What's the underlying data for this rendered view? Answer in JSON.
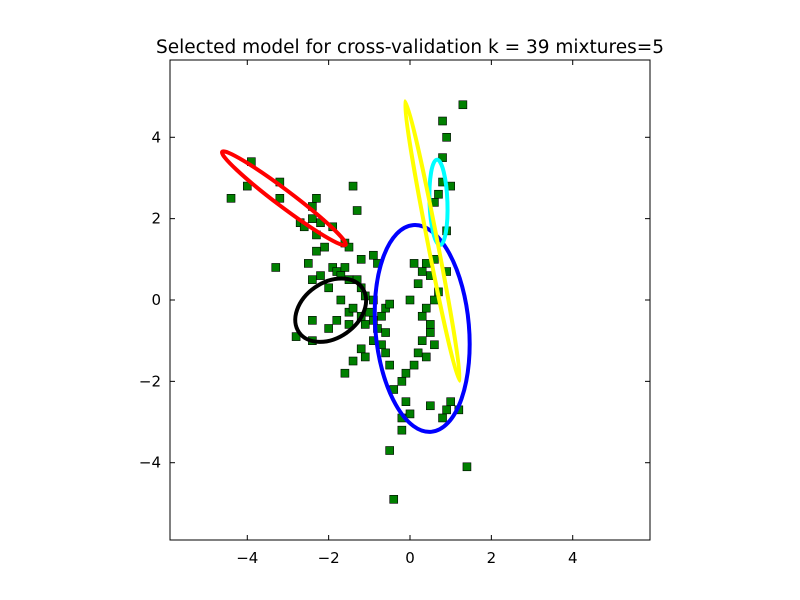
{
  "chart_data": {
    "type": "scatter",
    "title": "Selected model for cross-validation k = 39 mixtures=5",
    "xlabel": "",
    "ylabel": "",
    "xlim": [
      -5.9,
      5.9
    ],
    "ylim": [
      -5.9,
      5.9
    ],
    "xticks": [
      -4,
      -2,
      0,
      2,
      4
    ],
    "yticks": [
      -4,
      -2,
      0,
      2,
      4
    ],
    "xtick_labels": [
      "−4",
      "−2",
      "0",
      "2",
      "4"
    ],
    "ytick_labels": [
      "−4",
      "−2",
      "0",
      "2",
      "4"
    ],
    "grid": false,
    "legend": "none",
    "marker": "square",
    "point_color": "#008000",
    "points": [
      [
        -4.4,
        2.5
      ],
      [
        -4.0,
        2.8
      ],
      [
        -3.9,
        3.4
      ],
      [
        -3.2,
        2.9
      ],
      [
        -3.2,
        2.5
      ],
      [
        -3.3,
        0.8
      ],
      [
        -2.7,
        1.9
      ],
      [
        -2.6,
        1.8
      ],
      [
        -2.5,
        0.9
      ],
      [
        -2.4,
        2.3
      ],
      [
        -2.4,
        2.0
      ],
      [
        -2.3,
        2.5
      ],
      [
        -2.3,
        1.6
      ],
      [
        -2.3,
        1.2
      ],
      [
        -2.2,
        1.9
      ],
      [
        -2.1,
        1.3
      ],
      [
        -1.9,
        1.8
      ],
      [
        -1.4,
        2.8
      ],
      [
        -1.3,
        2.2
      ],
      [
        -1.6,
        1.4
      ],
      [
        -1.5,
        1.3
      ],
      [
        -1.2,
        1.0
      ],
      [
        -0.9,
        1.1
      ],
      [
        -0.8,
        0.9
      ],
      [
        -2.4,
        0.5
      ],
      [
        -2.2,
        0.6
      ],
      [
        -2.0,
        0.3
      ],
      [
        -1.9,
        0.8
      ],
      [
        -1.8,
        0.7
      ],
      [
        -1.7,
        0.6
      ],
      [
        -1.6,
        0.8
      ],
      [
        -1.5,
        0.5
      ],
      [
        -1.3,
        0.5
      ],
      [
        -1.2,
        0.3
      ],
      [
        -1.1,
        0.1
      ],
      [
        -0.9,
        0.0
      ],
      [
        -1.7,
        0.0
      ],
      [
        -1.5,
        -0.3
      ],
      [
        -1.4,
        -0.2
      ],
      [
        -1.2,
        -0.4
      ],
      [
        -1.1,
        -0.6
      ],
      [
        -1.0,
        -0.3
      ],
      [
        -0.9,
        -0.5
      ],
      [
        -0.8,
        -0.7
      ],
      [
        -0.7,
        -0.4
      ],
      [
        -0.6,
        -0.2
      ],
      [
        -0.6,
        -0.8
      ],
      [
        -0.5,
        -0.1
      ],
      [
        -2.8,
        -0.9
      ],
      [
        -2.4,
        -1.0
      ],
      [
        -2.4,
        -0.5
      ],
      [
        -2.0,
        -0.7
      ],
      [
        -1.8,
        -0.5
      ],
      [
        -1.5,
        -0.6
      ],
      [
        -1.4,
        -1.5
      ],
      [
        -1.2,
        -1.2
      ],
      [
        -1.1,
        -1.4
      ],
      [
        -0.9,
        -1.0
      ],
      [
        -0.7,
        -1.1
      ],
      [
        -0.6,
        -1.3
      ],
      [
        -0.5,
        -1.6
      ],
      [
        -1.6,
        -1.8
      ],
      [
        -0.4,
        -2.2
      ],
      [
        -0.2,
        -2.0
      ],
      [
        -0.1,
        -2.5
      ],
      [
        0.0,
        -2.8
      ],
      [
        -0.2,
        -2.9
      ],
      [
        -0.2,
        -3.2
      ],
      [
        -0.5,
        -3.7
      ],
      [
        -0.4,
        -4.9
      ],
      [
        0.5,
        -2.6
      ],
      [
        0.8,
        -2.9
      ],
      [
        0.9,
        -2.7
      ],
      [
        1.0,
        -2.5
      ],
      [
        1.2,
        -2.7
      ],
      [
        1.4,
        -4.1
      ],
      [
        -0.1,
        -1.8
      ],
      [
        0.1,
        -1.6
      ],
      [
        0.2,
        -1.3
      ],
      [
        0.3,
        -1.0
      ],
      [
        0.4,
        -1.4
      ],
      [
        0.5,
        -0.8
      ],
      [
        0.6,
        -1.1
      ],
      [
        0.3,
        -0.4
      ],
      [
        0.4,
        -0.2
      ],
      [
        0.5,
        -0.6
      ],
      [
        0.6,
        0.0
      ],
      [
        0.7,
        0.2
      ],
      [
        0.0,
        0.0
      ],
      [
        0.2,
        0.4
      ],
      [
        0.3,
        0.7
      ],
      [
        0.4,
        0.9
      ],
      [
        0.5,
        0.6
      ],
      [
        0.6,
        1.0
      ],
      [
        0.1,
        0.9
      ],
      [
        0.9,
        0.7
      ],
      [
        0.9,
        1.7
      ],
      [
        0.6,
        2.4
      ],
      [
        0.7,
        2.6
      ],
      [
        0.8,
        2.9
      ],
      [
        1.0,
        2.8
      ],
      [
        0.8,
        3.5
      ],
      [
        0.9,
        4.0
      ],
      [
        0.8,
        4.4
      ],
      [
        1.3,
        4.8
      ]
    ],
    "ellipses": [
      {
        "color": "#ff0000",
        "cx": -3.1,
        "cy": 2.5,
        "rx": 1.9,
        "ry": 0.2,
        "angle_deg": -37
      },
      {
        "color": "#0000ff",
        "cx": 0.3,
        "cy": -0.7,
        "rx": 1.15,
        "ry": 2.55,
        "angle_deg": 5
      },
      {
        "color": "#000000",
        "cx": -1.95,
        "cy": -0.25,
        "rx": 0.95,
        "ry": 0.68,
        "angle_deg": 35
      },
      {
        "color": "#00ffff",
        "cx": 0.7,
        "cy": 2.4,
        "rx": 0.22,
        "ry": 1.05,
        "angle_deg": 2
      },
      {
        "color": "#ffff00",
        "cx": 0.55,
        "cy": 1.45,
        "rx": 0.12,
        "ry": 3.5,
        "angle_deg": 11
      }
    ]
  }
}
